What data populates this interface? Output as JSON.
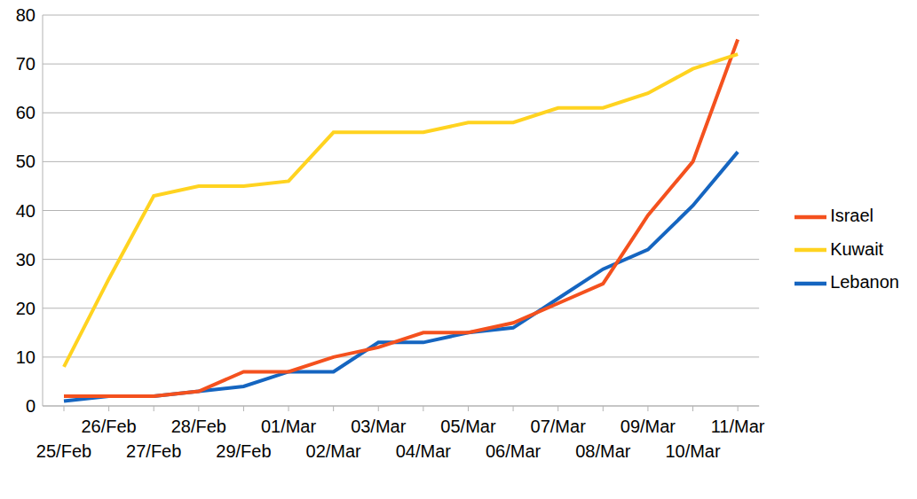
{
  "chart_data": {
    "type": "line",
    "categories": [
      "25/Feb",
      "26/Feb",
      "27/Feb",
      "28/Feb",
      "29/Feb",
      "01/Mar",
      "02/Mar",
      "03/Mar",
      "04/Mar",
      "05/Mar",
      "06/Mar",
      "07/Mar",
      "08/Mar",
      "09/Mar",
      "10/Mar",
      "11/Mar"
    ],
    "series": [
      {
        "name": "Lebanon",
        "color": "#1565c0",
        "values": [
          1,
          2,
          2,
          3,
          4,
          7,
          7,
          13,
          13,
          15,
          16,
          22,
          28,
          32,
          41,
          52
        ]
      },
      {
        "name": "Israel",
        "color": "#f4511e",
        "values": [
          2,
          2,
          2,
          3,
          7,
          7,
          10,
          12,
          15,
          15,
          17,
          21,
          25,
          39,
          50,
          75
        ]
      },
      {
        "name": "Kuwait",
        "color": "#ffd320",
        "values": [
          8,
          26,
          43,
          45,
          45,
          46,
          56,
          56,
          56,
          58,
          58,
          61,
          61,
          64,
          69,
          72
        ]
      }
    ],
    "ylim": [
      0,
      80
    ],
    "yticks": [
      0,
      10,
      20,
      30,
      40,
      50,
      60,
      70,
      80
    ],
    "grid": true,
    "legend": "right"
  }
}
